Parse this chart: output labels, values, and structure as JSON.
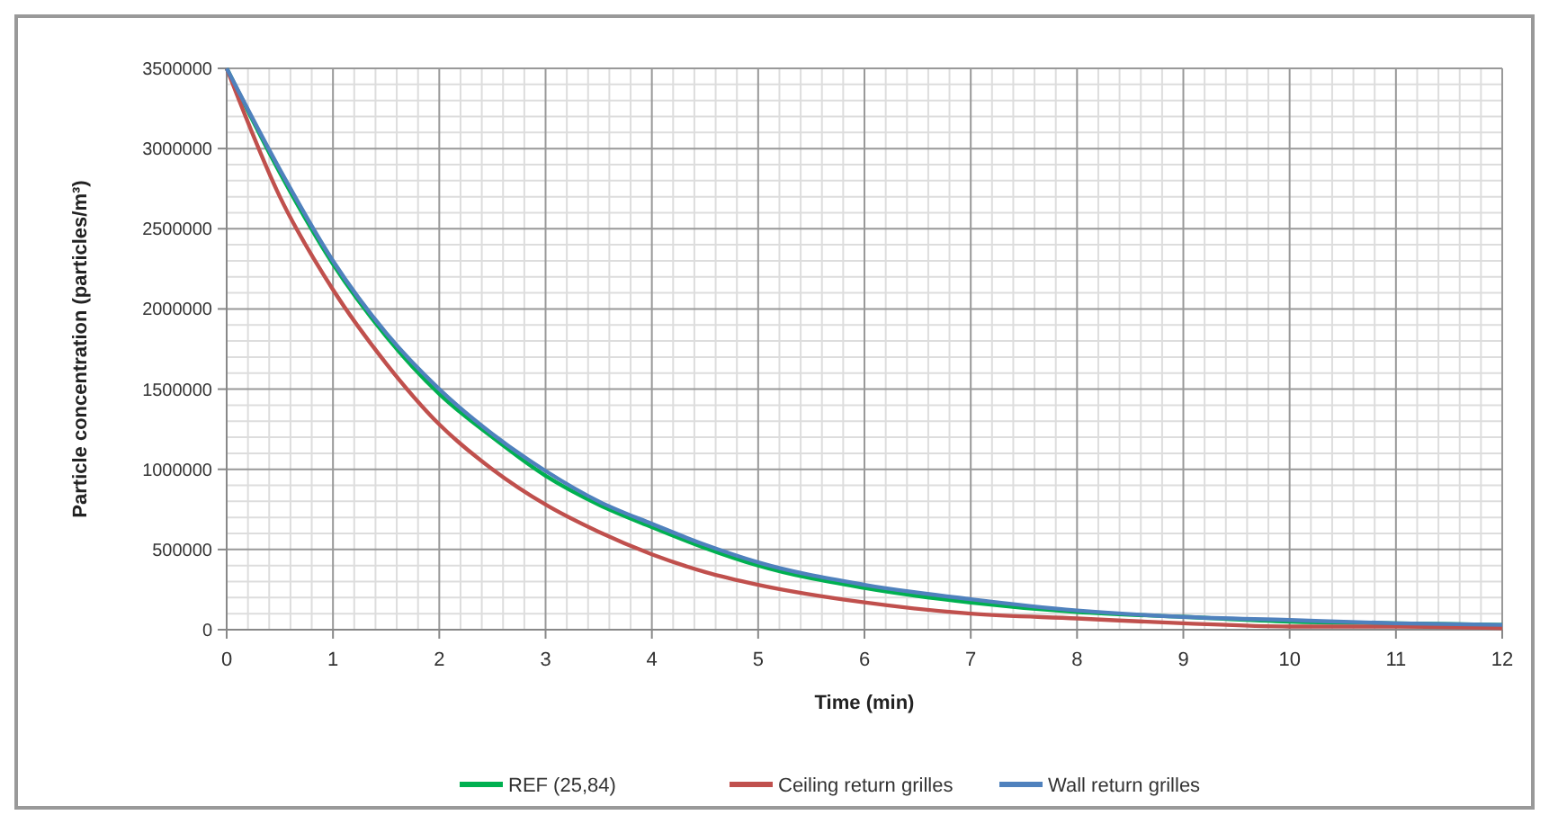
{
  "chart_data": {
    "type": "line",
    "xlabel": "Time (min)",
    "ylabel": "Particle concentration (particles/m³)",
    "x": [
      0,
      0.5,
      1,
      1.5,
      2,
      2.5,
      3,
      3.5,
      4,
      4.5,
      5,
      6,
      7,
      8,
      9,
      10,
      11,
      12
    ],
    "series": [
      {
        "name": "REF (25,84)",
        "color": "#00b050",
        "values": [
          3500000,
          2850000,
          2280000,
          1830000,
          1470000,
          1200000,
          960000,
          780000,
          640000,
          510000,
          400000,
          260000,
          170000,
          110000,
          80000,
          50000,
          40000,
          30000
        ]
      },
      {
        "name": "Ceiling return grilles",
        "color": "#c0504d",
        "values": [
          3500000,
          2700000,
          2120000,
          1660000,
          1280000,
          1000000,
          780000,
          610000,
          470000,
          360000,
          280000,
          170000,
          100000,
          70000,
          40000,
          20000,
          20000,
          10000
        ]
      },
      {
        "name": "Wall return grilles",
        "color": "#4f81bd",
        "values": [
          3500000,
          2870000,
          2300000,
          1850000,
          1500000,
          1220000,
          990000,
          800000,
          660000,
          530000,
          420000,
          280000,
          190000,
          120000,
          80000,
          60000,
          40000,
          30000
        ]
      }
    ],
    "xlim": [
      0,
      12
    ],
    "xticks": [
      0,
      1,
      2,
      3,
      4,
      5,
      6,
      7,
      8,
      9,
      10,
      11,
      12
    ],
    "ylim": [
      0,
      3500000
    ],
    "yticks": [
      0,
      500000,
      1000000,
      1500000,
      2000000,
      2500000,
      3000000,
      3500000
    ],
    "grid": true,
    "legend": "bottom",
    "line_style": "solid"
  }
}
